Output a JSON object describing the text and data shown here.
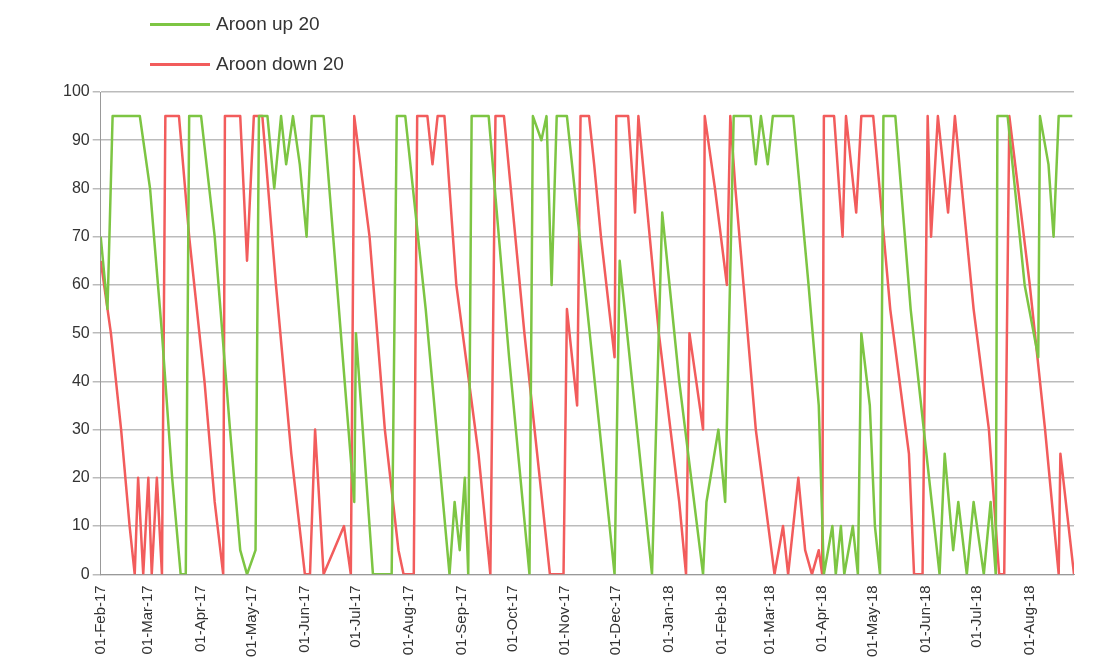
{
  "chart_data": {
    "type": "line",
    "legend": "top left",
    "grid": "y",
    "marker": "none",
    "line_style": "solid",
    "xlim": [
      "2017-02-01",
      "2018-08-27"
    ],
    "xticks": [
      {
        "value": "2017-02-01",
        "label": "01-Feb-17"
      },
      {
        "value": "2017-03-01",
        "label": "01-Mar-17"
      },
      {
        "value": "2017-04-01",
        "label": "01-Apr-17"
      },
      {
        "value": "2017-05-01",
        "label": "01-May-17"
      },
      {
        "value": "2017-06-01",
        "label": "01-Jun-17"
      },
      {
        "value": "2017-07-01",
        "label": "01-Jul-17"
      },
      {
        "value": "2017-08-01",
        "label": "01-Aug-17"
      },
      {
        "value": "2017-09-01",
        "label": "01-Sep-17"
      },
      {
        "value": "2017-10-01",
        "label": "01-Oct-17"
      },
      {
        "value": "2017-11-01",
        "label": "01-Nov-17"
      },
      {
        "value": "2017-12-01",
        "label": "01-Dec-17"
      },
      {
        "value": "2018-01-01",
        "label": "01-Jan-18"
      },
      {
        "value": "2018-02-01",
        "label": "01-Feb-18"
      },
      {
        "value": "2018-03-01",
        "label": "01-Mar-18"
      },
      {
        "value": "2018-04-01",
        "label": "01-Apr-18"
      },
      {
        "value": "2018-05-01",
        "label": "01-May-18"
      },
      {
        "value": "2018-06-01",
        "label": "01-Jun-18"
      },
      {
        "value": "2018-07-01",
        "label": "01-Jul-18"
      },
      {
        "value": "2018-08-01",
        "label": "01-Aug-18"
      }
    ],
    "ylim": [
      0,
      100
    ],
    "yticks": [
      0,
      10,
      20,
      30,
      40,
      50,
      60,
      70,
      80,
      90,
      100
    ],
    "series": [
      {
        "name": "Aroon up 20",
        "color": "#7dc543",
        "x": [
          "2017-02-01",
          "2017-02-05",
          "2017-02-08",
          "2017-02-24",
          "2017-03-02",
          "2017-03-09",
          "2017-03-15",
          "2017-03-20",
          "2017-03-23",
          "2017-03-25",
          "2017-04-01",
          "2017-04-09",
          "2017-04-18",
          "2017-04-24",
          "2017-04-28",
          "2017-05-03",
          "2017-05-05",
          "2017-05-10",
          "2017-05-14",
          "2017-05-18",
          "2017-05-21",
          "2017-05-25",
          "2017-05-29",
          "2017-06-02",
          "2017-06-05",
          "2017-06-12",
          "2017-06-21",
          "2017-06-30",
          "2017-07-01",
          "2017-07-11",
          "2017-07-22",
          "2017-07-25",
          "2017-07-30",
          "2017-08-11",
          "2017-08-25",
          "2017-08-28",
          "2017-08-31",
          "2017-09-03",
          "2017-09-05",
          "2017-09-07",
          "2017-09-17",
          "2017-09-29",
          "2017-10-11",
          "2017-10-13",
          "2017-10-18",
          "2017-10-21",
          "2017-10-24",
          "2017-10-27",
          "2017-11-02",
          "2017-11-11",
          "2017-11-30",
          "2017-12-03",
          "2017-12-22",
          "2017-12-28",
          "2018-01-07",
          "2018-01-21",
          "2018-01-23",
          "2018-01-30",
          "2018-02-03",
          "2018-02-08",
          "2018-02-18",
          "2018-02-21",
          "2018-02-24",
          "2018-02-28",
          "2018-03-03",
          "2018-03-15",
          "2018-03-24",
          "2018-03-30",
          "2018-04-02",
          "2018-04-07",
          "2018-04-09",
          "2018-04-12",
          "2018-04-14",
          "2018-04-19",
          "2018-04-22",
          "2018-04-24",
          "2018-04-29",
          "2018-05-02",
          "2018-05-05",
          "2018-05-07",
          "2018-05-14",
          "2018-05-23",
          "2018-06-09",
          "2018-06-12",
          "2018-06-17",
          "2018-06-20",
          "2018-06-25",
          "2018-06-29",
          "2018-07-05",
          "2018-07-09",
          "2018-07-12",
          "2018-07-13",
          "2018-07-19",
          "2018-07-29",
          "2018-08-06",
          "2018-08-07",
          "2018-08-12",
          "2018-08-15",
          "2018-08-18",
          "2018-08-26"
        ],
        "values": [
          70,
          55,
          95,
          95,
          80,
          50,
          20,
          0,
          0,
          95,
          95,
          70,
          30,
          5,
          0,
          5,
          95,
          95,
          80,
          95,
          85,
          95,
          85,
          70,
          95,
          95,
          55,
          15,
          50,
          0,
          0,
          95,
          95,
          55,
          0,
          15,
          5,
          20,
          0,
          95,
          95,
          45,
          0,
          95,
          90,
          95,
          60,
          95,
          95,
          65,
          0,
          65,
          0,
          75,
          40,
          0,
          15,
          30,
          15,
          95,
          95,
          85,
          95,
          85,
          95,
          95,
          60,
          35,
          0,
          10,
          0,
          10,
          0,
          10,
          0,
          50,
          35,
          10,
          0,
          95,
          95,
          55,
          0,
          25,
          5,
          15,
          0,
          15,
          0,
          15,
          0,
          95,
          95,
          60,
          45,
          95,
          85,
          70,
          95,
          95
        ]
      },
      {
        "name": "Aroon down 20",
        "color": "#f25c5c",
        "x": [
          "2017-02-01",
          "2017-02-07",
          "2017-02-13",
          "2017-02-18",
          "2017-02-21",
          "2017-02-23",
          "2017-02-26",
          "2017-03-01",
          "2017-03-03",
          "2017-03-06",
          "2017-03-09",
          "2017-03-11",
          "2017-03-19",
          "2017-03-25",
          "2017-04-03",
          "2017-04-09",
          "2017-04-14",
          "2017-04-15",
          "2017-04-24",
          "2017-04-28",
          "2017-05-02",
          "2017-05-07",
          "2017-05-15",
          "2017-05-24",
          "2017-06-01",
          "2017-06-04",
          "2017-06-07",
          "2017-06-12",
          "2017-06-18",
          "2017-06-24",
          "2017-06-28",
          "2017-06-30",
          "2017-07-09",
          "2017-07-18",
          "2017-07-26",
          "2017-07-29",
          "2017-08-04",
          "2017-08-06",
          "2017-08-12",
          "2017-08-15",
          "2017-08-18",
          "2017-08-22",
          "2017-08-29",
          "2017-09-11",
          "2017-09-18",
          "2017-09-21",
          "2017-09-26",
          "2017-10-08",
          "2017-10-20",
          "2017-10-23",
          "2017-10-31",
          "2017-11-02",
          "2017-11-08",
          "2017-11-10",
          "2017-11-15",
          "2017-11-18",
          "2017-11-22",
          "2017-11-30",
          "2017-12-01",
          "2017-12-08",
          "2017-12-12",
          "2017-12-14",
          "2017-12-26",
          "2018-01-07",
          "2018-01-11",
          "2018-01-13",
          "2018-01-21",
          "2018-01-22",
          "2018-01-28",
          "2018-02-04",
          "2018-02-06",
          "2018-02-09",
          "2018-02-21",
          "2018-03-04",
          "2018-03-09",
          "2018-03-12",
          "2018-03-18",
          "2018-03-22",
          "2018-03-26",
          "2018-03-30",
          "2018-04-01",
          "2018-04-02",
          "2018-04-08",
          "2018-04-13",
          "2018-04-15",
          "2018-04-21",
          "2018-04-24",
          "2018-05-01",
          "2018-05-11",
          "2018-05-22",
          "2018-05-25",
          "2018-05-30",
          "2018-06-02",
          "2018-06-04",
          "2018-06-08",
          "2018-06-14",
          "2018-06-18",
          "2018-06-29",
          "2018-07-08",
          "2018-07-14",
          "2018-07-17",
          "2018-07-20",
          "2018-08-01",
          "2018-08-10",
          "2018-08-18",
          "2018-08-19",
          "2018-08-27"
        ],
        "values": [
          65,
          50,
          30,
          10,
          0,
          20,
          0,
          20,
          0,
          20,
          0,
          95,
          95,
          70,
          40,
          15,
          0,
          95,
          95,
          65,
          95,
          95,
          60,
          25,
          0,
          0,
          30,
          0,
          5,
          10,
          0,
          95,
          70,
          30,
          5,
          0,
          0,
          95,
          95,
          85,
          95,
          95,
          60,
          25,
          0,
          95,
          95,
          50,
          10,
          0,
          0,
          55,
          35,
          95,
          95,
          85,
          70,
          45,
          95,
          95,
          75,
          95,
          50,
          15,
          0,
          50,
          30,
          95,
          80,
          60,
          95,
          80,
          30,
          0,
          10,
          0,
          20,
          5,
          0,
          5,
          0,
          95,
          95,
          70,
          95,
          75,
          95,
          95,
          55,
          25,
          0,
          0,
          95,
          70,
          95,
          75,
          95,
          55,
          30,
          0,
          0,
          95,
          60,
          30,
          0,
          25,
          0
        ]
      }
    ]
  }
}
